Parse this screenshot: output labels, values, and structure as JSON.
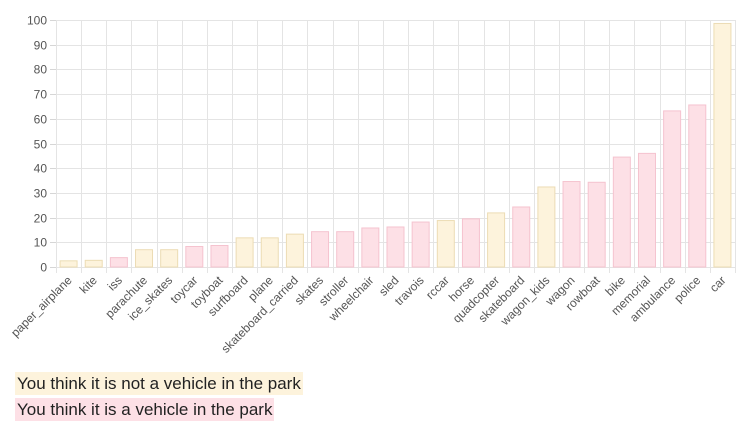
{
  "chart_data": {
    "type": "bar",
    "categories": [
      "paper_airplane",
      "kite",
      "iss",
      "parachute",
      "ice_skates",
      "toycar",
      "toyboat",
      "surfboard",
      "plane",
      "skateboard_carried",
      "skates",
      "stroller",
      "wheelchair",
      "sled",
      "travois",
      "rccar",
      "horse",
      "quadcopter",
      "skateboard",
      "wagon_kids",
      "wagon",
      "rowboat",
      "bike",
      "memorial",
      "ambulance",
      "police",
      "car"
    ],
    "values": [
      2.5,
      2.7,
      3.8,
      7,
      7,
      8.3,
      8.7,
      11.8,
      11.8,
      13.3,
      14.3,
      14.3,
      15.8,
      16.2,
      18.2,
      18.8,
      19.5,
      21.9,
      24.3,
      32.4,
      34.6,
      34.3,
      44.5,
      46,
      63.2,
      65.6,
      98.6
    ],
    "groups": [
      "not",
      "not",
      "is",
      "not",
      "not",
      "is",
      "is",
      "not",
      "not",
      "not",
      "is",
      "is",
      "is",
      "is",
      "is",
      "not",
      "is",
      "not",
      "is",
      "not",
      "is",
      "is",
      "is",
      "is",
      "is",
      "is",
      "not"
    ],
    "ylim": [
      0,
      100
    ],
    "yticks": [
      0,
      10,
      20,
      30,
      40,
      50,
      60,
      70,
      80,
      90,
      100
    ],
    "grid": true,
    "colors": {
      "not": {
        "fill": "#fdf3dc",
        "stroke": "#ecdcb4"
      },
      "is": {
        "fill": "#fde0e6",
        "stroke": "#f5c3cf"
      }
    }
  },
  "legend": {
    "not_label": "You think it is not a vehicle in the park",
    "is_label": "You think it is a vehicle in the park",
    "not_color": "#fdf3dc",
    "is_color": "#fde0e6"
  }
}
